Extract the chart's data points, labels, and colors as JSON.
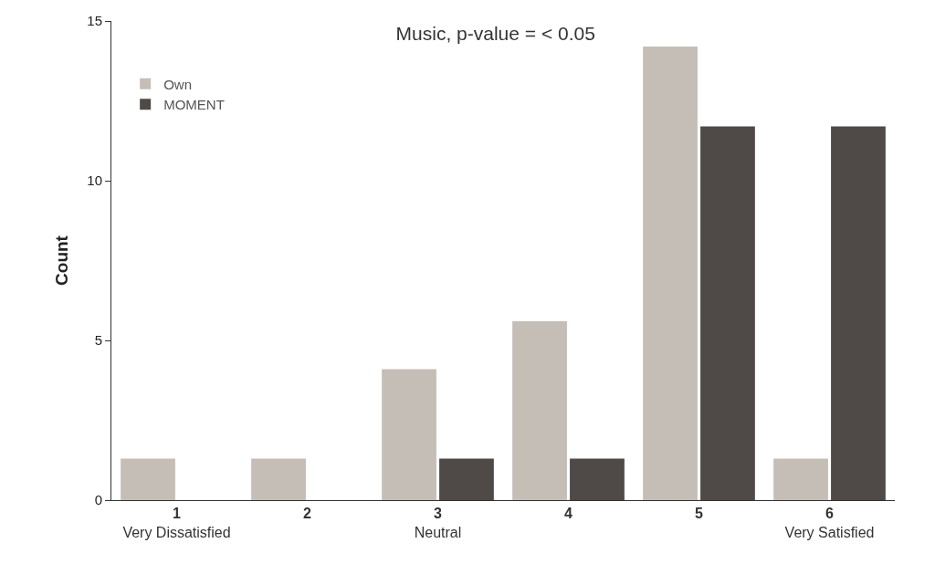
{
  "chart_data": {
    "type": "bar",
    "title": "Music, p-value = < 0.05",
    "ylabel": "Count",
    "categories": [
      "1\nVery Dissatisfied",
      "2",
      "3\nNeutral",
      "4",
      "5",
      "6\nVery Satisfied"
    ],
    "series": [
      {
        "name": "Own",
        "color": "#c5beb7",
        "values": [
          1.3,
          1.3,
          4.1,
          5.6,
          14.2,
          1.3
        ]
      },
      {
        "name": "MOMENT",
        "color": "#4f4a47",
        "values": [
          0,
          0,
          1.3,
          1.3,
          11.7,
          11.7
        ]
      }
    ],
    "ylim": [
      0,
      15
    ],
    "yticks": [
      0,
      5,
      10,
      15
    ],
    "legend": "top left"
  }
}
